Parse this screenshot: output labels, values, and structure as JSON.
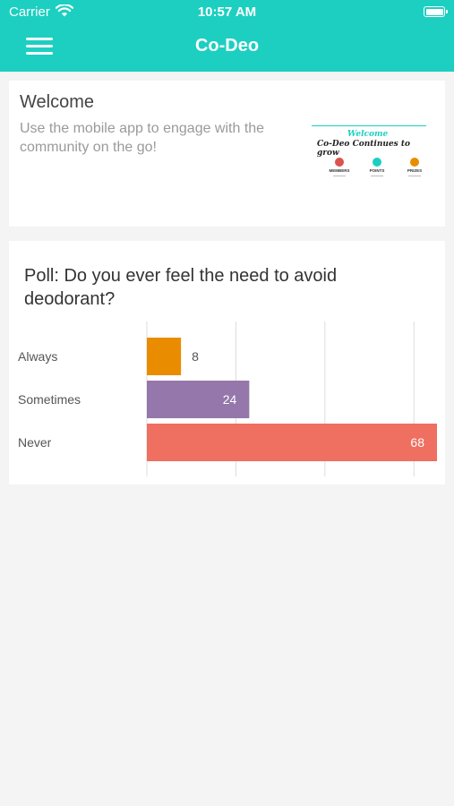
{
  "status_bar": {
    "carrier": "Carrier",
    "time": "10:57 AM"
  },
  "header": {
    "title": "Co-Deo",
    "menu_icon": "hamburger-menu-icon"
  },
  "welcome": {
    "title": "Welcome",
    "text": "Use the mobile app to engage with the community on the go!",
    "banner": {
      "heading": "Welcome",
      "subtitle": "Co-Deo Continues to grow",
      "items": [
        "MEMBERS",
        "POINTS",
        "PRIZES"
      ]
    }
  },
  "poll": {
    "title": "Poll: Do you ever feel the need to avoid deodorant?"
  },
  "chart_data": {
    "type": "bar",
    "orientation": "horizontal",
    "categories": [
      "Always",
      "Sometimes",
      "Never"
    ],
    "values": [
      8,
      24,
      68
    ],
    "colors": [
      "#ea8c00",
      "#9577ab",
      "#ef6f61"
    ],
    "xlim": [
      0,
      68
    ],
    "grid": true,
    "title": ""
  }
}
